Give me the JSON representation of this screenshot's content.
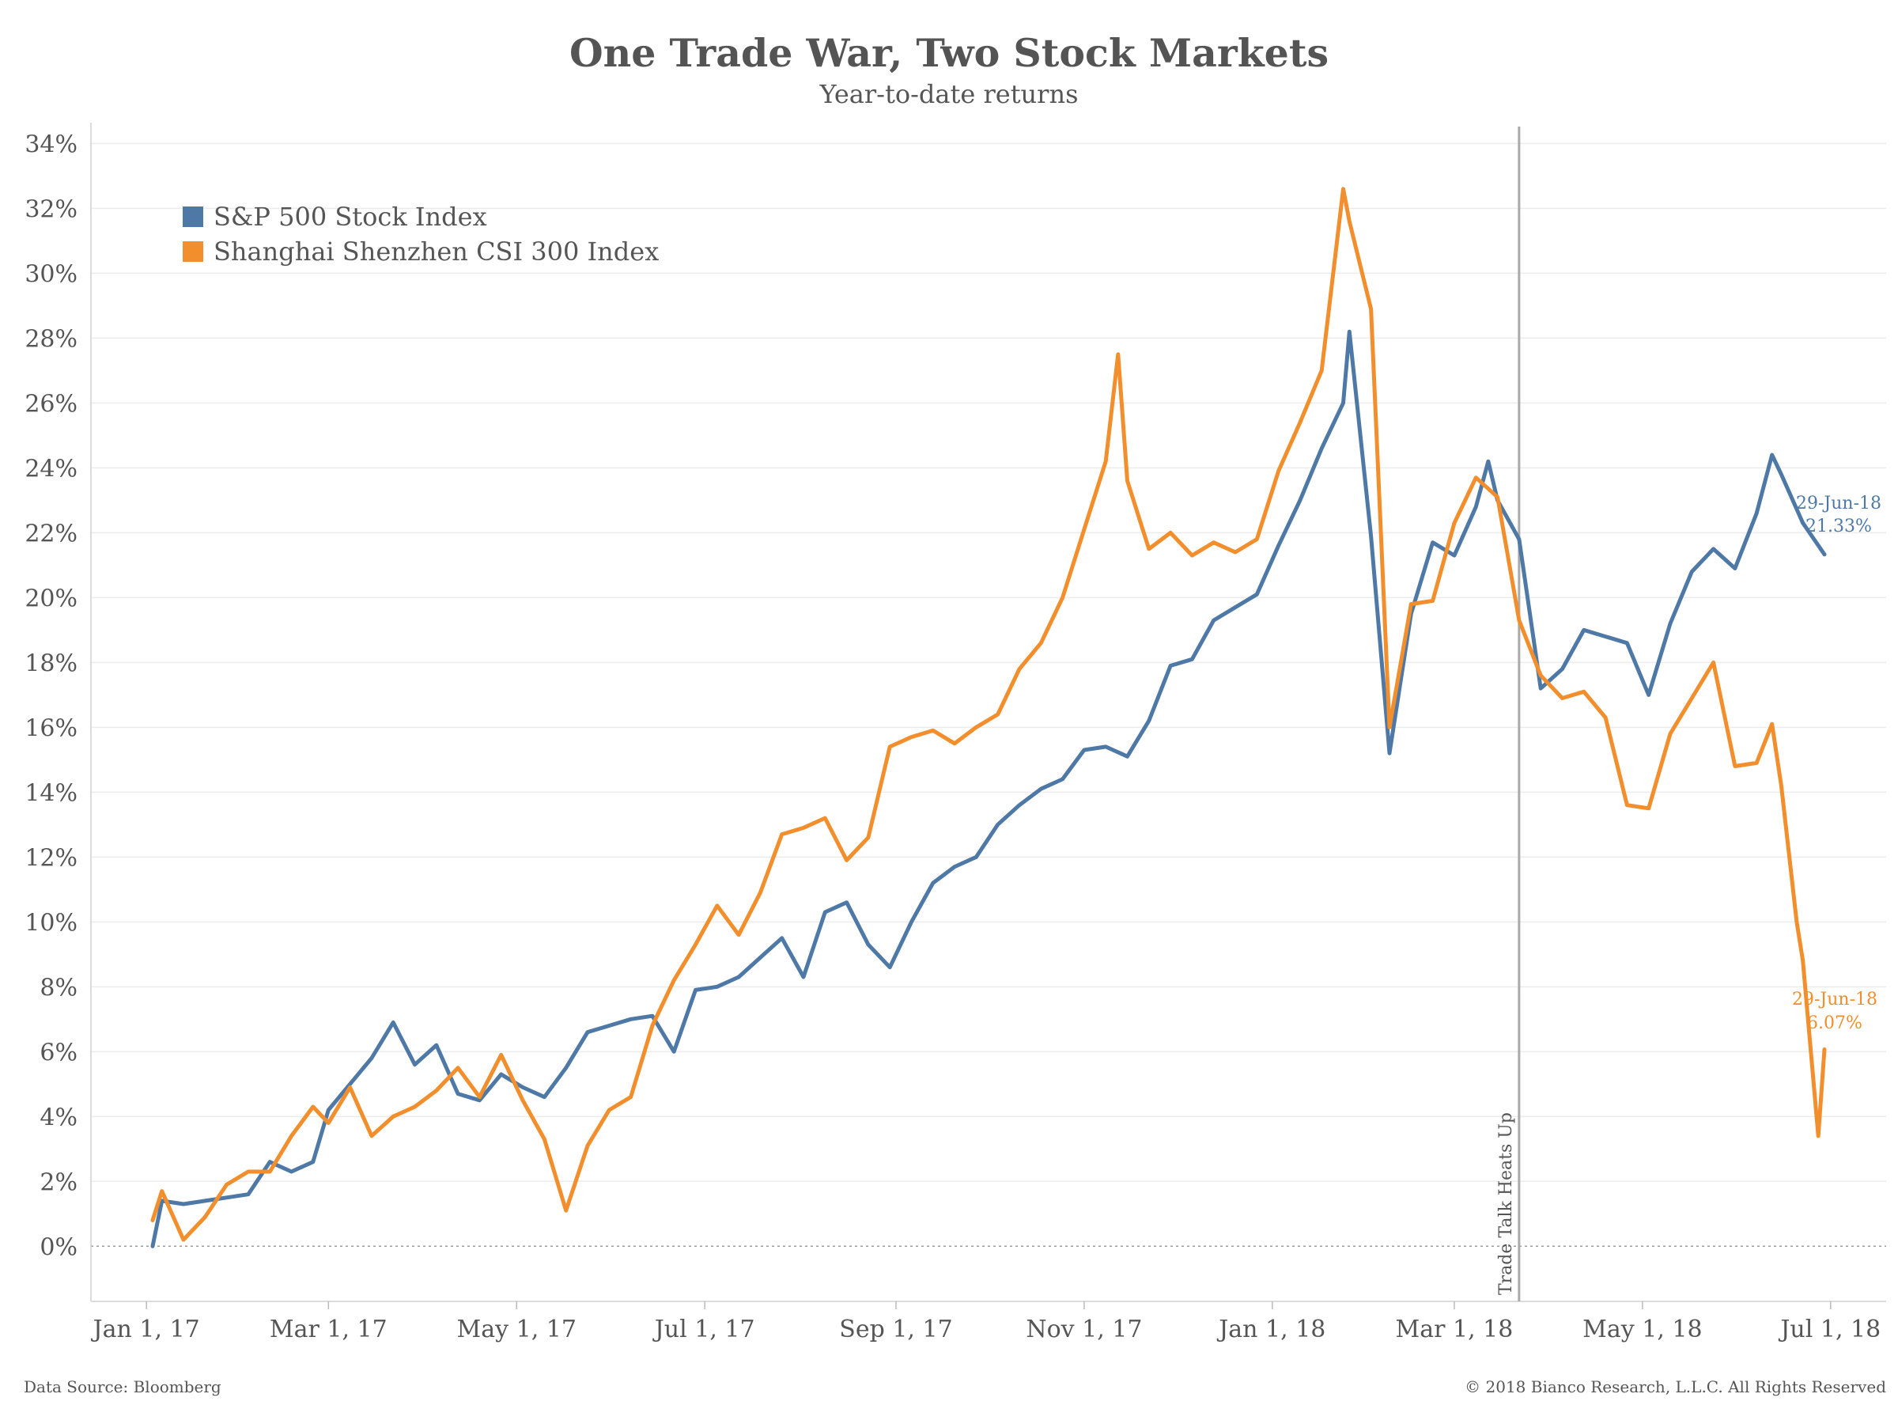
{
  "chart_data": {
    "type": "line",
    "title": "One Trade War, Two Stock Markets",
    "subtitle": "Year-to-date returns",
    "yticks": [
      "0%",
      "2%",
      "4%",
      "6%",
      "8%",
      "10%",
      "12%",
      "14%",
      "16%",
      "18%",
      "20%",
      "22%",
      "24%",
      "26%",
      "28%",
      "30%",
      "32%",
      "34%"
    ],
    "xticks": [
      "Jan 1, 17",
      "Mar 1, 17",
      "May 1, 17",
      "Jul 1, 17",
      "Sep 1, 17",
      "Nov 1, 17",
      "Jan 1, 18",
      "Mar 1, 18",
      "May 1, 18",
      "Jul 1, 18"
    ],
    "xlim": [
      "2016-12-14",
      "2018-07-19"
    ],
    "ylim": [
      -1.7,
      34.4
    ],
    "grid": true,
    "legend_position": "top-left",
    "series": [
      {
        "name": "S&P 500 Stock Index",
        "color": "#4e79a7",
        "points": [
          [
            "2017-01-03",
            0.0
          ],
          [
            "2017-01-06",
            1.4
          ],
          [
            "2017-01-13",
            1.3
          ],
          [
            "2017-01-20",
            1.4
          ],
          [
            "2017-01-27",
            1.5
          ],
          [
            "2017-02-03",
            1.6
          ],
          [
            "2017-02-10",
            2.6
          ],
          [
            "2017-02-17",
            2.3
          ],
          [
            "2017-02-24",
            2.6
          ],
          [
            "2017-03-01",
            4.2
          ],
          [
            "2017-03-08",
            5.0
          ],
          [
            "2017-03-15",
            5.8
          ],
          [
            "2017-03-22",
            6.9
          ],
          [
            "2017-03-29",
            5.6
          ],
          [
            "2017-04-05",
            6.2
          ],
          [
            "2017-04-12",
            4.7
          ],
          [
            "2017-04-19",
            4.5
          ],
          [
            "2017-04-26",
            5.3
          ],
          [
            "2017-05-03",
            4.9
          ],
          [
            "2017-05-10",
            4.6
          ],
          [
            "2017-05-17",
            5.5
          ],
          [
            "2017-05-24",
            6.6
          ],
          [
            "2017-05-31",
            6.8
          ],
          [
            "2017-06-07",
            7.0
          ],
          [
            "2017-06-14",
            7.1
          ],
          [
            "2017-06-21",
            6.0
          ],
          [
            "2017-06-28",
            7.9
          ],
          [
            "2017-07-05",
            8.0
          ],
          [
            "2017-07-12",
            8.3
          ],
          [
            "2017-07-19",
            8.9
          ],
          [
            "2017-07-26",
            9.5
          ],
          [
            "2017-08-02",
            8.3
          ],
          [
            "2017-08-09",
            10.3
          ],
          [
            "2017-08-16",
            10.6
          ],
          [
            "2017-08-23",
            9.3
          ],
          [
            "2017-08-30",
            8.6
          ],
          [
            "2017-09-06",
            10.0
          ],
          [
            "2017-09-13",
            11.2
          ],
          [
            "2017-09-20",
            11.7
          ],
          [
            "2017-09-27",
            12.0
          ],
          [
            "2017-10-04",
            13.0
          ],
          [
            "2017-10-11",
            13.6
          ],
          [
            "2017-10-18",
            14.1
          ],
          [
            "2017-10-25",
            14.4
          ],
          [
            "2017-11-01",
            15.3
          ],
          [
            "2017-11-08",
            15.4
          ],
          [
            "2017-11-15",
            15.1
          ],
          [
            "2017-11-22",
            16.2
          ],
          [
            "2017-11-29",
            17.9
          ],
          [
            "2017-12-06",
            18.1
          ],
          [
            "2017-12-13",
            19.3
          ],
          [
            "2017-12-20",
            19.7
          ],
          [
            "2017-12-27",
            20.1
          ],
          [
            "2018-01-03",
            21.6
          ],
          [
            "2018-01-10",
            23.0
          ],
          [
            "2018-01-17",
            24.6
          ],
          [
            "2018-01-24",
            26.0
          ],
          [
            "2018-01-26",
            28.2
          ],
          [
            "2018-02-02",
            21.9
          ],
          [
            "2018-02-08",
            15.2
          ],
          [
            "2018-02-15",
            19.5
          ],
          [
            "2018-02-22",
            21.7
          ],
          [
            "2018-03-01",
            21.3
          ],
          [
            "2018-03-08",
            22.8
          ],
          [
            "2018-03-12",
            24.2
          ],
          [
            "2018-03-15",
            23.0
          ],
          [
            "2018-03-22",
            21.8
          ],
          [
            "2018-03-29",
            17.2
          ],
          [
            "2018-04-05",
            17.8
          ],
          [
            "2018-04-12",
            19.0
          ],
          [
            "2018-04-19",
            18.8
          ],
          [
            "2018-04-26",
            18.6
          ],
          [
            "2018-05-03",
            17.0
          ],
          [
            "2018-05-10",
            19.2
          ],
          [
            "2018-05-17",
            20.8
          ],
          [
            "2018-05-24",
            21.5
          ],
          [
            "2018-05-31",
            20.9
          ],
          [
            "2018-06-07",
            22.6
          ],
          [
            "2018-06-12",
            24.4
          ],
          [
            "2018-06-15",
            23.8
          ],
          [
            "2018-06-22",
            22.3
          ],
          [
            "2018-06-29",
            21.33
          ]
        ]
      },
      {
        "name": "Shanghai Shenzhen CSI 300 Index",
        "color": "#f28e2b",
        "points": [
          [
            "2017-01-03",
            0.8
          ],
          [
            "2017-01-06",
            1.7
          ],
          [
            "2017-01-13",
            0.2
          ],
          [
            "2017-01-20",
            0.9
          ],
          [
            "2017-01-27",
            1.9
          ],
          [
            "2017-02-03",
            2.3
          ],
          [
            "2017-02-10",
            2.3
          ],
          [
            "2017-02-17",
            3.4
          ],
          [
            "2017-02-24",
            4.3
          ],
          [
            "2017-03-01",
            3.8
          ],
          [
            "2017-03-08",
            4.9
          ],
          [
            "2017-03-15",
            3.4
          ],
          [
            "2017-03-22",
            4.0
          ],
          [
            "2017-03-29",
            4.3
          ],
          [
            "2017-04-05",
            4.8
          ],
          [
            "2017-04-12",
            5.5
          ],
          [
            "2017-04-19",
            4.6
          ],
          [
            "2017-04-26",
            5.9
          ],
          [
            "2017-05-03",
            4.5
          ],
          [
            "2017-05-10",
            3.3
          ],
          [
            "2017-05-17",
            1.1
          ],
          [
            "2017-05-24",
            3.1
          ],
          [
            "2017-05-31",
            4.2
          ],
          [
            "2017-06-07",
            4.6
          ],
          [
            "2017-06-14",
            6.8
          ],
          [
            "2017-06-21",
            8.2
          ],
          [
            "2017-06-28",
            9.3
          ],
          [
            "2017-07-05",
            10.5
          ],
          [
            "2017-07-12",
            9.6
          ],
          [
            "2017-07-19",
            10.9
          ],
          [
            "2017-07-26",
            12.7
          ],
          [
            "2017-08-02",
            12.9
          ],
          [
            "2017-08-09",
            13.2
          ],
          [
            "2017-08-16",
            11.9
          ],
          [
            "2017-08-23",
            12.6
          ],
          [
            "2017-08-30",
            15.4
          ],
          [
            "2017-09-06",
            15.7
          ],
          [
            "2017-09-13",
            15.9
          ],
          [
            "2017-09-20",
            15.5
          ],
          [
            "2017-09-27",
            16.0
          ],
          [
            "2017-10-04",
            16.4
          ],
          [
            "2017-10-11",
            17.8
          ],
          [
            "2017-10-18",
            18.6
          ],
          [
            "2017-10-25",
            20.0
          ],
          [
            "2017-11-01",
            22.1
          ],
          [
            "2017-11-08",
            24.2
          ],
          [
            "2017-11-12",
            27.5
          ],
          [
            "2017-11-15",
            23.6
          ],
          [
            "2017-11-22",
            21.5
          ],
          [
            "2017-11-29",
            22.0
          ],
          [
            "2017-12-06",
            21.3
          ],
          [
            "2017-12-13",
            21.7
          ],
          [
            "2017-12-20",
            21.4
          ],
          [
            "2017-12-27",
            21.8
          ],
          [
            "2018-01-03",
            23.9
          ],
          [
            "2018-01-10",
            25.4
          ],
          [
            "2018-01-17",
            27.0
          ],
          [
            "2018-01-24",
            32.6
          ],
          [
            "2018-01-26",
            31.6
          ],
          [
            "2018-02-02",
            28.9
          ],
          [
            "2018-02-08",
            16.0
          ],
          [
            "2018-02-15",
            19.8
          ],
          [
            "2018-02-22",
            19.9
          ],
          [
            "2018-03-01",
            22.3
          ],
          [
            "2018-03-08",
            23.7
          ],
          [
            "2018-03-15",
            23.1
          ],
          [
            "2018-03-22",
            19.3
          ],
          [
            "2018-03-29",
            17.6
          ],
          [
            "2018-04-05",
            16.9
          ],
          [
            "2018-04-12",
            17.1
          ],
          [
            "2018-04-19",
            16.3
          ],
          [
            "2018-04-26",
            13.6
          ],
          [
            "2018-05-03",
            13.5
          ],
          [
            "2018-05-10",
            15.8
          ],
          [
            "2018-05-17",
            16.9
          ],
          [
            "2018-05-24",
            18.0
          ],
          [
            "2018-05-31",
            14.8
          ],
          [
            "2018-06-07",
            14.9
          ],
          [
            "2018-06-12",
            16.1
          ],
          [
            "2018-06-15",
            14.2
          ],
          [
            "2018-06-20",
            10.0
          ],
          [
            "2018-06-22",
            8.8
          ],
          [
            "2018-06-27",
            3.4
          ],
          [
            "2018-06-29",
            6.07
          ]
        ]
      }
    ],
    "annotations": {
      "vertical_line_date": "2018-03-22",
      "vertical_line_label": "Trade Talk Heats Up",
      "spx_end_date": "29-Jun-18",
      "spx_end_value": "21.33%",
      "csi_end_date": "29-Jun-18",
      "csi_end_value": "6.07%"
    }
  },
  "footer": {
    "source": "Data Source: Bloomberg",
    "copyright": "© 2018 Bianco Research, L.L.C. All Rights Reserved"
  }
}
